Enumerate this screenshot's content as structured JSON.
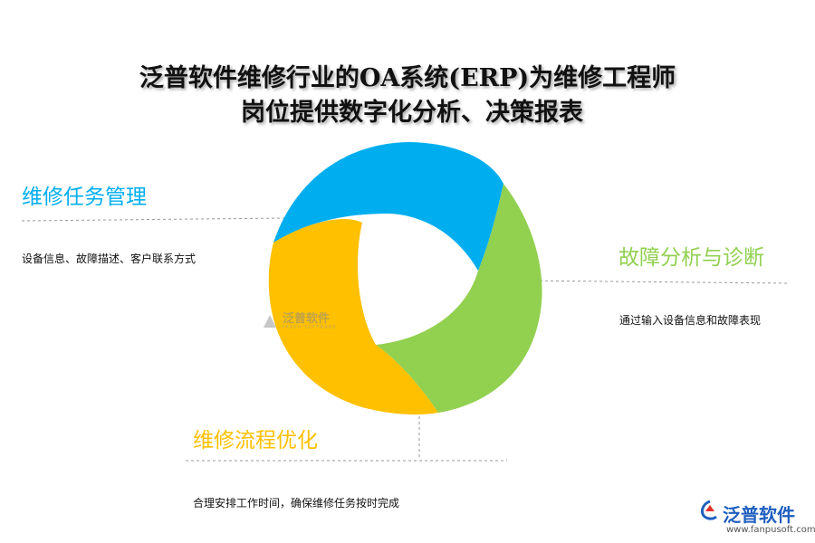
{
  "title": {
    "line1": "泛普软件维修行业的OA系统(ERP)为维修工程师",
    "line2": "岗位提供数字化分析、决策报表"
  },
  "colors": {
    "blue": "#00AEEF",
    "green": "#92D050",
    "yellow": "#FFC000",
    "brand": "#1F5FBF"
  },
  "sections": [
    {
      "heading": "维修任务管理",
      "description": "设备信息、故障描述、客户联系方式",
      "color": "#00AEEF"
    },
    {
      "heading": "故障分析与诊断",
      "description": "通过输入设备信息和故障表现",
      "color": "#92D050"
    },
    {
      "heading": "维修流程优化",
      "description": "合理安排工作时间，确保维修任务按时完成",
      "color": "#FFC000"
    }
  ],
  "watermark": {
    "text": "泛普软件",
    "sub": "FANPU SOFTWARE"
  },
  "brand": {
    "name": "泛普软件",
    "url": "www.fanpusoft.com"
  }
}
